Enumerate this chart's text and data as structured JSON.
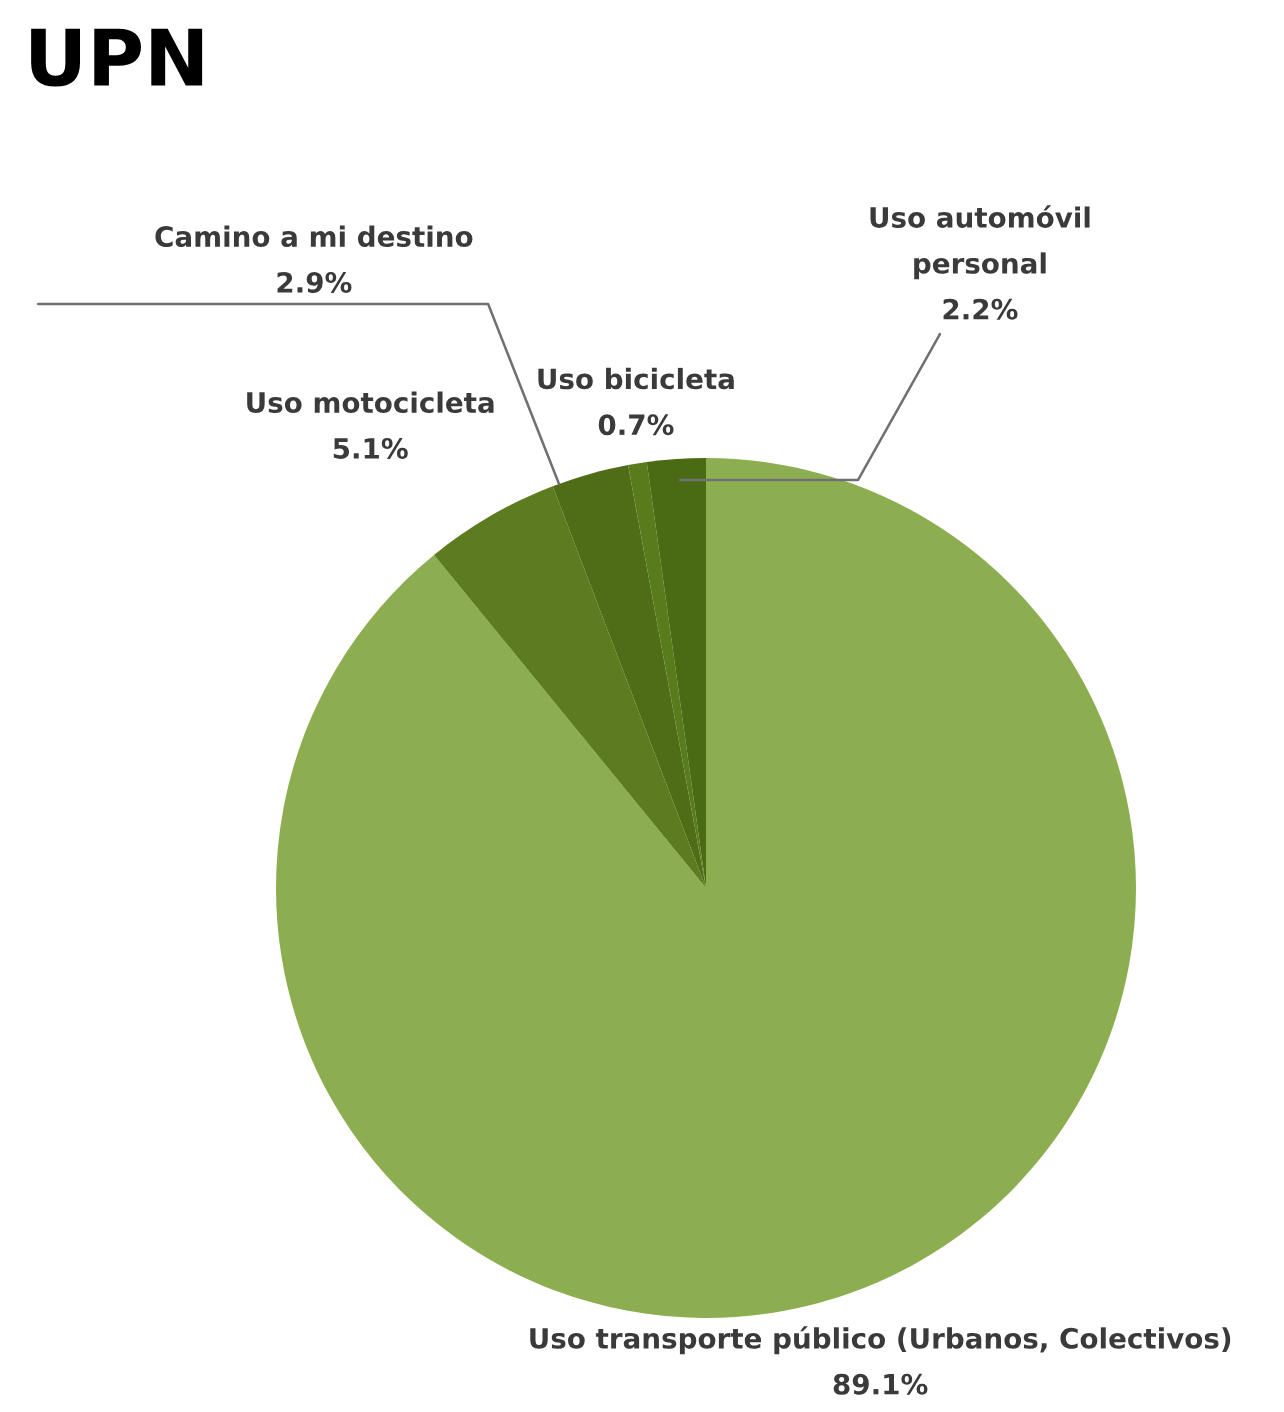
{
  "chart_data": {
    "type": "pie",
    "title": "UPN",
    "categories": [
      "Uso transporte público (Urbanos, Colectivos)",
      "Uso motocicleta",
      "Camino a mi destino",
      "Uso bicicleta",
      "Uso automóvil personal"
    ],
    "values": [
      89.1,
      5.1,
      2.9,
      0.7,
      2.2
    ],
    "colors": [
      "#8cae50",
      "#5c7c1f",
      "#4f6d17",
      "#597b1b",
      "#4b6a14"
    ],
    "value_labels": [
      "89.1%",
      "5.1%",
      "2.9%",
      "0.7%",
      "2.2%"
    ]
  }
}
